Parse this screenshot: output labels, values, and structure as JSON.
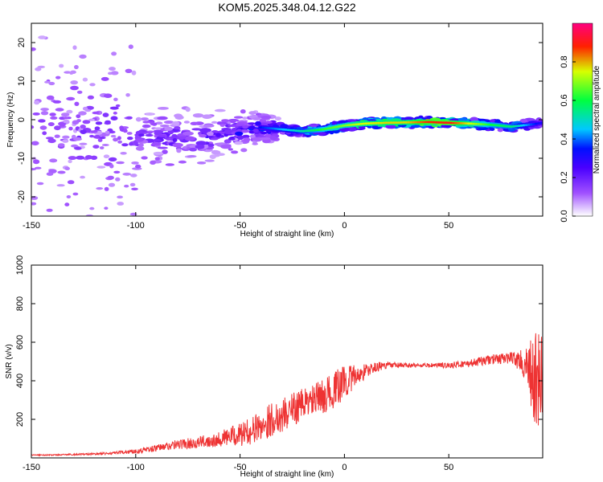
{
  "chart_data": [
    {
      "type": "heatmap",
      "title": "KOM5.2025.348.04.12.G22",
      "xlabel": "Height of straight line (km)",
      "ylabel": "Frequency (Hz)",
      "xlim": [
        -150,
        95
      ],
      "ylim": [
        -25,
        25
      ],
      "xticks": [
        -150,
        -100,
        -50,
        0,
        50
      ],
      "yticks": [
        -20,
        -10,
        0,
        10,
        20
      ],
      "colorbar": {
        "label": "Normalized spectral amplitude",
        "range": [
          0.0,
          1.0
        ],
        "ticks": [
          0.0,
          0.2,
          0.4,
          0.6,
          0.8
        ],
        "tick_labels": [
          "0.0",
          "0.2",
          "0.4",
          "0.6",
          "0.8"
        ],
        "colors": [
          "#ffffff",
          "#c080ff",
          "#6a00ff",
          "#0000ff",
          "#00e0ff",
          "#00ff40",
          "#ffff00",
          "#ff0000",
          "#ff007f"
        ]
      },
      "ridge": {
        "height_km": [
          -150,
          -120,
          -100,
          -80,
          -60,
          -50,
          -40,
          -30,
          -20,
          -10,
          0,
          10,
          20,
          30,
          40,
          50,
          60,
          70,
          80,
          90,
          95
        ],
        "frequency_hz": [
          -2,
          -3,
          -4,
          -5,
          -4,
          -3,
          -2,
          -2.5,
          -3,
          -2.5,
          -1.5,
          -1,
          -0.8,
          -0.7,
          -0.6,
          -0.8,
          -1,
          -1.3,
          -1.8,
          -1.2,
          -0.8
        ],
        "amplitude": [
          0.05,
          0.07,
          0.1,
          0.12,
          0.15,
          0.2,
          0.28,
          0.35,
          0.42,
          0.5,
          0.55,
          0.6,
          0.62,
          0.62,
          0.7,
          0.72,
          0.6,
          0.48,
          0.45,
          0.3,
          0.25
        ]
      }
    },
    {
      "type": "line",
      "title": "",
      "xlabel": "Height of straight line (km)",
      "ylabel": "SNR (v/v)",
      "xlim": [
        -150,
        95
      ],
      "ylim": [
        0,
        1000
      ],
      "xticks": [
        -150,
        -100,
        -50,
        0,
        50
      ],
      "yticks": [
        200,
        400,
        600,
        800,
        1000
      ],
      "series": [
        {
          "name": "SNR",
          "color": "#ee3333",
          "x": [
            -150,
            -140,
            -130,
            -120,
            -110,
            -100,
            -90,
            -80,
            -70,
            -60,
            -50,
            -45,
            -40,
            -35,
            -30,
            -25,
            -20,
            -15,
            -10,
            -5,
            0,
            5,
            10,
            15,
            20,
            25,
            30,
            40,
            50,
            60,
            70,
            80,
            85,
            88,
            90,
            92,
            95
          ],
          "y": [
            15,
            15,
            18,
            20,
            25,
            35,
            50,
            70,
            80,
            100,
            120,
            140,
            165,
            200,
            220,
            250,
            280,
            300,
            320,
            350,
            400,
            420,
            450,
            470,
            480,
            480,
            480,
            480,
            480,
            490,
            510,
            520,
            500,
            450,
            400,
            380,
            420
          ],
          "fluctuation": [
            3,
            3,
            4,
            5,
            8,
            12,
            18,
            25,
            30,
            40,
            60,
            70,
            80,
            90,
            90,
            90,
            80,
            80,
            90,
            90,
            100,
            60,
            40,
            25,
            20,
            15,
            12,
            12,
            15,
            20,
            25,
            30,
            60,
            120,
            250,
            300,
            200
          ]
        }
      ]
    }
  ]
}
